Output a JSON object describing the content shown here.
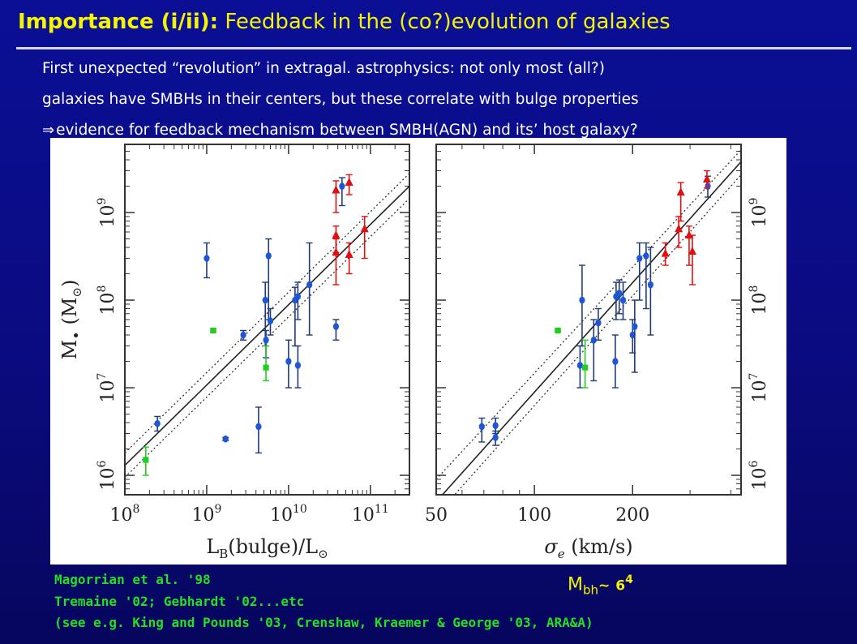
{
  "slide": {
    "title_lead": "Importance (i/ii):",
    "title_rest": "Feedback in the (co?)evolution of galaxies",
    "lines": [
      "First unexpected “revolution” in extragal. astrophysics: not only most (all?)",
      "galaxies have SMBHs in their centers, but these correlate with bulge properties",
      "evidence for feedback mechanism between SMBH(AGN) and its’ host galaxy?"
    ],
    "implies_symbol": "⇒",
    "references": [
      "Magorrian et al. '98",
      "Tremaine '02; Gebhardt '02...etc",
      "(see e.g. King and Pounds '03, Crenshaw, Kraemer & George '03, ARA&A)"
    ],
    "relation": {
      "lhs": "M",
      "lhs_sub": "bh",
      "tilde": "~",
      "rhs": "6",
      "rhs_sup": "4"
    }
  },
  "chart_data": [
    {
      "type": "scatter",
      "xlabel": "L_B(bulge)/L_⊙",
      "ylabel": "M_• (M_⊙)",
      "xscale": "log",
      "yscale": "log",
      "xlim": [
        100000000,
        300000000000
      ],
      "ylim": [
        600000,
        6000000000
      ],
      "x_ticks": [
        {
          "value": 100000000,
          "base": "10",
          "exp": "8"
        },
        {
          "value": 1000000000,
          "base": "10",
          "exp": "9"
        },
        {
          "value": 10000000000,
          "base": "10",
          "exp": "10"
        },
        {
          "value": 100000000000,
          "base": "10",
          "exp": "11"
        }
      ],
      "y_ticks": [
        {
          "value": 1000000,
          "base": "10",
          "exp": "6"
        },
        {
          "value": 10000000,
          "base": "10",
          "exp": "7"
        },
        {
          "value": 100000000,
          "base": "10",
          "exp": "8"
        },
        {
          "value": 1000000000,
          "base": "10",
          "exp": "9"
        }
      ],
      "series": [
        {
          "marker": "circle",
          "color": "#1e56d8",
          "points": [
            {
              "x": 250000000,
              "y": 3900000,
              "lo": 3200000,
              "hi": 4700000
            },
            {
              "x": 1000000000,
              "y": 300000000,
              "lo": 180000000,
              "hi": 450000000
            },
            {
              "x": 1700000000,
              "y": 2600000,
              "lo": 2500000,
              "hi": 2700000
            },
            {
              "x": 2800000000,
              "y": 40000000,
              "lo": 35000000,
              "hi": 45000000
            },
            {
              "x": 4300000000,
              "y": 3600000,
              "lo": 1800000,
              "hi": 6000000
            },
            {
              "x": 5200000000,
              "y": 100000000,
              "lo": 30000000,
              "hi": 160000000
            },
            {
              "x": 5300000000,
              "y": 35000000,
              "lo": 22000000,
              "hi": 45000000
            },
            {
              "x": 5700000000,
              "y": 320000000,
              "lo": 60000000,
              "hi": 500000000
            },
            {
              "x": 6000000000,
              "y": 58000000,
              "lo": 40000000,
              "hi": 80000000
            },
            {
              "x": 10000000000,
              "y": 20000000,
              "lo": 10000000,
              "hi": 35000000
            },
            {
              "x": 12000000000,
              "y": 100000000,
              "lo": 30000000,
              "hi": 140000000
            },
            {
              "x": 13000000000,
              "y": 110000000,
              "lo": 60000000,
              "hi": 160000000
            },
            {
              "x": 13000000000,
              "y": 18000000,
              "lo": 10000000,
              "hi": 30000000
            },
            {
              "x": 18000000000,
              "y": 150000000,
              "lo": 40000000,
              "hi": 450000000
            },
            {
              "x": 38000000000,
              "y": 50000000,
              "lo": 35000000,
              "hi": 60000000
            },
            {
              "x": 45000000000,
              "y": 2000000000,
              "lo": 1200000000,
              "hi": 2500000000
            }
          ]
        },
        {
          "marker": "square",
          "color": "#22cc22",
          "points": [
            {
              "x": 180000000,
              "y": 1500000,
              "lo": 1000000,
              "hi": 2100000
            },
            {
              "x": 1200000000,
              "y": 45000000,
              "lo": 43000000,
              "hi": 47000000
            },
            {
              "x": 5300000000,
              "y": 17000000,
              "lo": 12000000,
              "hi": 30000000
            }
          ]
        },
        {
          "marker": "triangle",
          "color": "#e01010",
          "points": [
            {
              "x": 38000000000,
              "y": 1800000000,
              "lo": 1000000000,
              "hi": 2300000000
            },
            {
              "x": 38000000000,
              "y": 550000000,
              "lo": 350000000,
              "hi": 700000000
            },
            {
              "x": 38000000000,
              "y": 350000000,
              "lo": 150000000,
              "hi": 500000000
            },
            {
              "x": 55000000000,
              "y": 2200000000,
              "lo": 1600000000,
              "hi": 2700000000
            },
            {
              "x": 55000000000,
              "y": 330000000,
              "lo": 200000000,
              "hi": 450000000
            },
            {
              "x": 85000000000,
              "y": 650000000,
              "lo": 300000000,
              "hi": 900000000
            }
          ]
        }
      ],
      "fit_line": {
        "x": [
          100000000,
          300000000000
        ],
        "y": [
          1300000,
          2000000000
        ]
      },
      "fit_band": {
        "upper": [
          1800000,
          2800000000
        ],
        "lower": [
          950000,
          1450000000
        ]
      }
    },
    {
      "type": "scatter",
      "xlabel": "σ_e (km/s)",
      "ylabel": "",
      "xscale": "log",
      "yscale": "log",
      "xlim": [
        50,
        430
      ],
      "ylim": [
        600000,
        6000000000
      ],
      "x_ticks": [
        {
          "value": 50,
          "base": "50",
          "exp": ""
        },
        {
          "value": 100,
          "base": "100",
          "exp": ""
        },
        {
          "value": 200,
          "base": "200",
          "exp": ""
        }
      ],
      "y_ticks": [
        {
          "value": 1000000,
          "base": "10",
          "exp": "6"
        },
        {
          "value": 10000000,
          "base": "10",
          "exp": "7"
        },
        {
          "value": 100000000,
          "base": "10",
          "exp": "8"
        },
        {
          "value": 1000000000,
          "base": "10",
          "exp": "9"
        }
      ],
      "series": [
        {
          "marker": "circle",
          "color": "#1e56d8",
          "points": [
            {
              "x": 69,
              "y": 3600000,
              "lo": 2400000,
              "hi": 4500000
            },
            {
              "x": 76,
              "y": 2700000,
              "lo": 2200000,
              "hi": 3200000
            },
            {
              "x": 76,
              "y": 3700000,
              "lo": 3000000,
              "hi": 4500000
            },
            {
              "x": 138,
              "y": 18000000,
              "lo": 10000000,
              "hi": 30000000
            },
            {
              "x": 140,
              "y": 100000000,
              "lo": 30000000,
              "hi": 250000000
            },
            {
              "x": 152,
              "y": 35000000,
              "lo": 12000000,
              "hi": 60000000
            },
            {
              "x": 157,
              "y": 55000000,
              "lo": 35000000,
              "hi": 80000000
            },
            {
              "x": 177,
              "y": 20000000,
              "lo": 10000000,
              "hi": 40000000
            },
            {
              "x": 178,
              "y": 110000000,
              "lo": 60000000,
              "hi": 160000000
            },
            {
              "x": 182,
              "y": 120000000,
              "lo": 70000000,
              "hi": 170000000
            },
            {
              "x": 187,
              "y": 100000000,
              "lo": 60000000,
              "hi": 160000000
            },
            {
              "x": 200,
              "y": 40000000,
              "lo": 25000000,
              "hi": 60000000
            },
            {
              "x": 203,
              "y": 50000000,
              "lo": 15000000,
              "hi": 100000000
            },
            {
              "x": 210,
              "y": 300000000,
              "lo": 100000000,
              "hi": 450000000
            },
            {
              "x": 220,
              "y": 320000000,
              "lo": 80000000,
              "hi": 450000000
            },
            {
              "x": 227,
              "y": 150000000,
              "lo": 40000000,
              "hi": 400000000
            },
            {
              "x": 340,
              "y": 2000000000,
              "lo": 1500000000,
              "hi": 2600000000
            }
          ]
        },
        {
          "marker": "square",
          "color": "#22cc22",
          "points": [
            {
              "x": 118,
              "y": 45000000,
              "lo": 44000000,
              "hi": 46000000
            },
            {
              "x": 143,
              "y": 17000000,
              "lo": 10000000,
              "hi": 35000000
            }
          ]
        },
        {
          "marker": "triangle",
          "color": "#e01010",
          "points": [
            {
              "x": 252,
              "y": 340000000,
              "lo": 250000000,
              "hi": 450000000
            },
            {
              "x": 277,
              "y": 650000000,
              "lo": 400000000,
              "hi": 900000000
            },
            {
              "x": 281,
              "y": 1700000000,
              "lo": 800000000,
              "hi": 2200000000
            },
            {
              "x": 298,
              "y": 550000000,
              "lo": 250000000,
              "hi": 700000000
            },
            {
              "x": 305,
              "y": 360000000,
              "lo": 150000000,
              "hi": 550000000
            },
            {
              "x": 338,
              "y": 2400000000,
              "lo": 1900000000,
              "hi": 3000000000
            }
          ]
        }
      ],
      "fit_line": {
        "x": [
          50,
          430
        ],
        "y": [
          500000,
          3800000000
        ]
      },
      "fit_band": {
        "upper": [
          900000,
          5200000000
        ],
        "lower": [
          350000,
          2700000000
        ]
      }
    }
  ]
}
